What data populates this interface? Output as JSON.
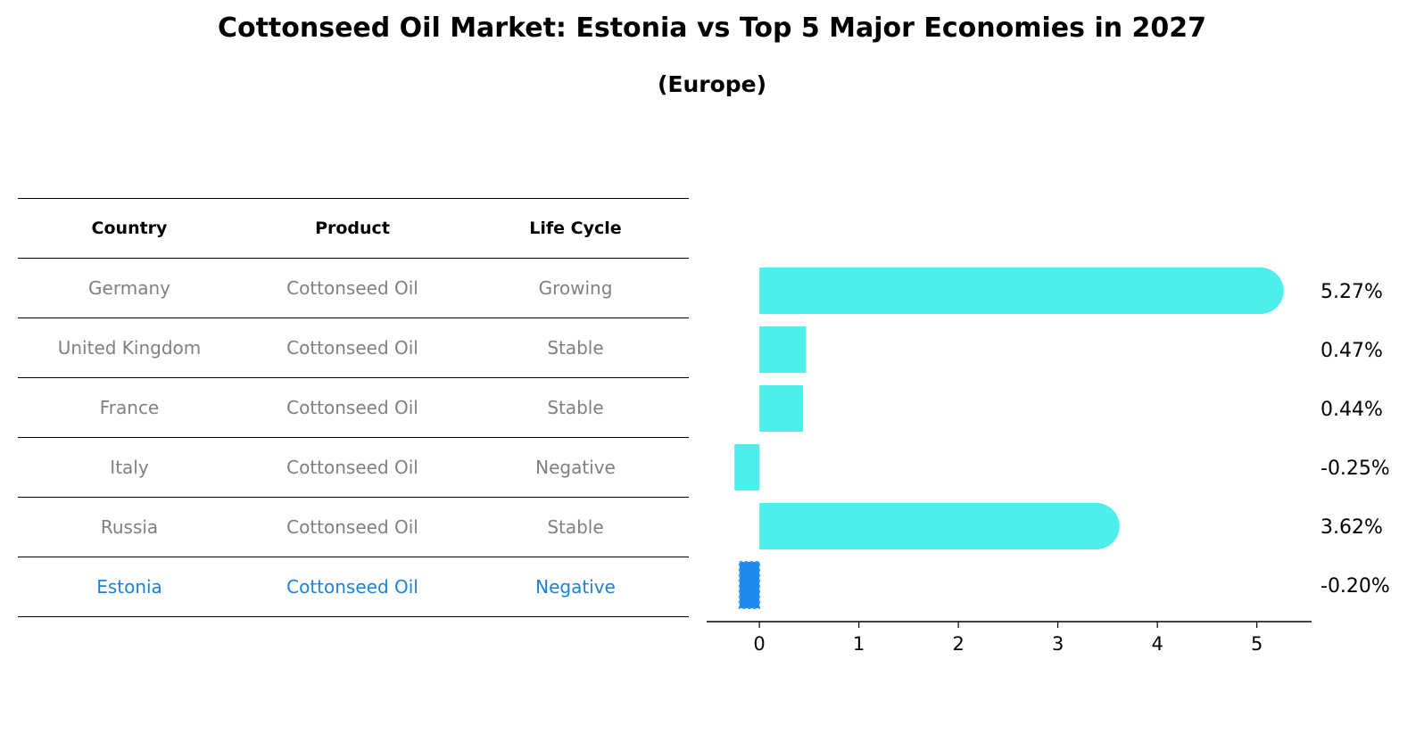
{
  "title": "Cottonseed Oil Market: Estonia vs Top 5 Major Economies in 2027",
  "subtitle": "(Europe)",
  "table": {
    "headers": [
      "Country",
      "Product",
      "Life Cycle"
    ],
    "rows": [
      [
        "Germany",
        "Cottonseed Oil",
        "Growing"
      ],
      [
        "United Kingdom",
        "Cottonseed Oil",
        "Stable"
      ],
      [
        "France",
        "Cottonseed Oil",
        "Stable"
      ],
      [
        "Italy",
        "Cottonseed Oil",
        "Negative"
      ],
      [
        "Russia",
        "Cottonseed Oil",
        "Stable"
      ],
      [
        "Estonia",
        "Cottonseed Oil",
        "Negative"
      ]
    ],
    "highlight_row": 5
  },
  "colors": {
    "bar": "#4eeeea",
    "highlight_bar": "#1e88ee",
    "highlight_text": "#1a82d8",
    "muted_text": "#808080"
  },
  "chart_data": {
    "type": "bar",
    "orientation": "horizontal",
    "categories": [
      "Germany",
      "United Kingdom",
      "France",
      "Italy",
      "Russia",
      "Estonia"
    ],
    "values": [
      5.27,
      0.47,
      0.44,
      -0.25,
      3.62,
      -0.2
    ],
    "value_labels": [
      "5.27%",
      "0.47%",
      "0.44%",
      "-0.25%",
      "3.62%",
      "-0.20%"
    ],
    "highlight_index": 5,
    "xticks": [
      0,
      1,
      2,
      3,
      4,
      5
    ],
    "xlim": [
      -0.53,
      5.55
    ]
  }
}
